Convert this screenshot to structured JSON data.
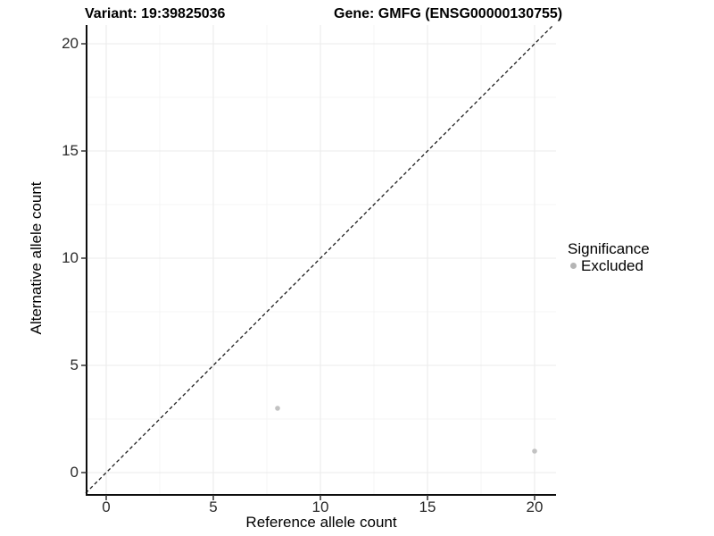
{
  "titles": {
    "variant": "Variant: 19:39825036",
    "gene": "Gene: GMFG (ENSG00000130755)"
  },
  "chart_data": {
    "type": "scatter",
    "title_left": "Variant: 19:39825036",
    "title_right": "Gene: GMFG (ENSG00000130755)",
    "xlabel": "Reference allele count",
    "ylabel": "Alternative allele count",
    "xlim": [
      -1,
      21
    ],
    "ylim": [
      -1,
      21
    ],
    "x_ticks": [
      0,
      5,
      10,
      15,
      20
    ],
    "y_ticks": [
      0,
      5,
      10,
      15,
      20
    ],
    "x_minor_ticks": [
      2.5,
      7.5,
      12.5,
      17.5
    ],
    "y_minor_ticks": [
      2.5,
      7.5,
      12.5,
      17.5
    ],
    "grid": "on",
    "identity_line": {
      "style": "dashed",
      "color": "#1a1a1a",
      "equation": "y = x"
    },
    "series": [
      {
        "name": "Excluded",
        "color": "#c2c2c2",
        "points": [
          [
            8,
            3
          ],
          [
            20,
            1
          ]
        ]
      }
    ],
    "legend": {
      "position": "right",
      "title": "Significance",
      "items": [
        {
          "label": "Excluded",
          "color": "#b5b5b5"
        }
      ]
    },
    "colors": {
      "axis_line": "#0d0d0d",
      "tick_mark": "#333333",
      "grid_major": "#ebebeb",
      "grid_minor": "#f4f4f4",
      "background": "#ffffff"
    }
  }
}
